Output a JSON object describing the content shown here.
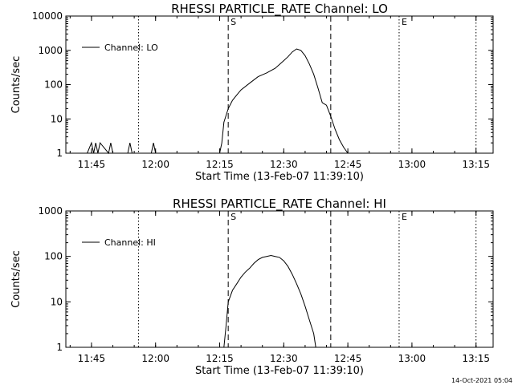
{
  "footer_timestamp": "14-Oct-2021 05:04",
  "chart_data": [
    {
      "type": "line",
      "scale_y": "log",
      "title": "RHESSI PARTICLE_RATE Channel: LO",
      "xlabel": "Start Time (13-Feb-07 11:39:10)",
      "ylabel": "Counts/sec",
      "x_ticks": [
        "11:45",
        "12:00",
        "12:15",
        "12:30",
        "12:45",
        "13:00",
        "13:15"
      ],
      "y_ticks": [
        "1",
        "10",
        "100",
        "1000",
        "10000"
      ],
      "xlim": [
        "11:39",
        "13:19"
      ],
      "ylim": [
        1,
        10000
      ],
      "legend": {
        "position": "top-left",
        "entries": [
          "Channel: LO"
        ]
      },
      "markers": [
        {
          "label": "S",
          "time": "12:17",
          "style": "dashed"
        },
        {
          "label": "E",
          "time": "12:57",
          "style": "dotted"
        }
      ],
      "extra_lines": [
        {
          "time": "11:56",
          "style": "dotted"
        },
        {
          "time": "12:41",
          "style": "dashed"
        },
        {
          "time": "13:15",
          "style": "dotted"
        }
      ],
      "series": [
        {
          "name": "Channel: LO",
          "x": [
            "11:44",
            "11:45",
            "11:45.5",
            "11:46",
            "11:46.5",
            "11:47",
            "11:49",
            "11:49.5",
            "11:50",
            "11:53.5",
            "11:54",
            "11:54.5",
            "11:59",
            "11:59.5",
            "12:00",
            "12:15",
            "12:15.5",
            "12:16",
            "12:17",
            "12:18",
            "12:19",
            "12:20",
            "12:22",
            "12:24",
            "12:26",
            "12:28",
            "12:30",
            "12:31",
            "12:32",
            "12:33",
            "12:34",
            "12:35",
            "12:36",
            "12:37",
            "12:38",
            "12:39",
            "12:40",
            "12:41",
            "12:42",
            "12:43",
            "12:44",
            "12:45",
            "12:45.5"
          ],
          "y": [
            1,
            2,
            1,
            2,
            1,
            2,
            1,
            2,
            1,
            1,
            2,
            1,
            1,
            2,
            1,
            1,
            2,
            8,
            20,
            35,
            50,
            70,
            110,
            170,
            220,
            300,
            500,
            650,
            900,
            1100,
            1000,
            700,
            400,
            200,
            80,
            30,
            25,
            12,
            5,
            2.5,
            1.5,
            1,
            1
          ]
        }
      ]
    },
    {
      "type": "line",
      "scale_y": "log",
      "title": "RHESSI PARTICLE_RATE Channel: HI",
      "xlabel": "Start Time (13-Feb-07 11:39:10)",
      "ylabel": "Counts/sec",
      "x_ticks": [
        "11:45",
        "12:00",
        "12:15",
        "12:30",
        "12:45",
        "13:00",
        "13:15"
      ],
      "y_ticks": [
        "1",
        "10",
        "100",
        "1000"
      ],
      "xlim": [
        "11:39",
        "13:19"
      ],
      "ylim": [
        1,
        1000
      ],
      "legend": {
        "position": "top-left",
        "entries": [
          "Channel: HI"
        ]
      },
      "markers": [
        {
          "label": "S",
          "time": "12:17",
          "style": "dashed"
        },
        {
          "label": "E",
          "time": "12:57",
          "style": "dotted"
        }
      ],
      "extra_lines": [
        {
          "time": "11:56",
          "style": "dotted"
        },
        {
          "time": "12:41",
          "style": "dashed"
        },
        {
          "time": "13:15",
          "style": "dotted"
        }
      ],
      "series": [
        {
          "name": "Channel: HI",
          "x": [
            "12:16",
            "12:16.5",
            "12:17",
            "12:18",
            "12:19",
            "12:20",
            "12:21",
            "12:22",
            "12:23",
            "12:24",
            "12:25",
            "12:26",
            "12:27",
            "12:28",
            "12:29",
            "12:30",
            "12:31",
            "12:32",
            "12:33",
            "12:34",
            "12:35",
            "12:36",
            "12:37",
            "12:37.5"
          ],
          "y": [
            1,
            3,
            10,
            18,
            25,
            35,
            45,
            55,
            70,
            85,
            95,
            100,
            105,
            100,
            95,
            80,
            60,
            40,
            25,
            15,
            8,
            4,
            2,
            1
          ]
        }
      ]
    }
  ]
}
